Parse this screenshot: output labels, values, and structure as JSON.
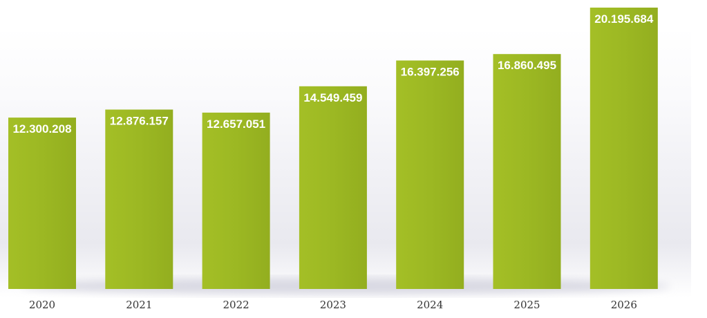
{
  "chart_data": {
    "type": "bar",
    "categories": [
      "2020",
      "2021",
      "2022",
      "2023",
      "2024",
      "2025",
      "2026"
    ],
    "values": [
      12300208,
      12876157,
      12657051,
      14549459,
      16397256,
      16860495,
      20195684
    ],
    "value_labels": [
      "12.300.208",
      "12.876.157",
      "12.657.051",
      "14.549.459",
      "16.397.256",
      "16.860.495",
      "20.195.684"
    ],
    "title": "",
    "xlabel": "",
    "ylabel": "",
    "grid": false,
    "legend": "none",
    "bar_color": "#9cb823"
  }
}
